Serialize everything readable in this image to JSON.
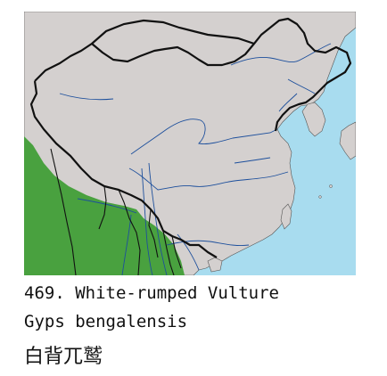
{
  "species": {
    "number_name": "469. White-rumped Vulture",
    "scientific_name": "Gyps bengalensis",
    "chinese_name": "白背兀鹫"
  },
  "map": {
    "colors": {
      "sea": "#a8dcef",
      "land": "#d4d0cf",
      "range": "#49a13f",
      "border": "#111111",
      "river": "#1d4f9c"
    }
  }
}
